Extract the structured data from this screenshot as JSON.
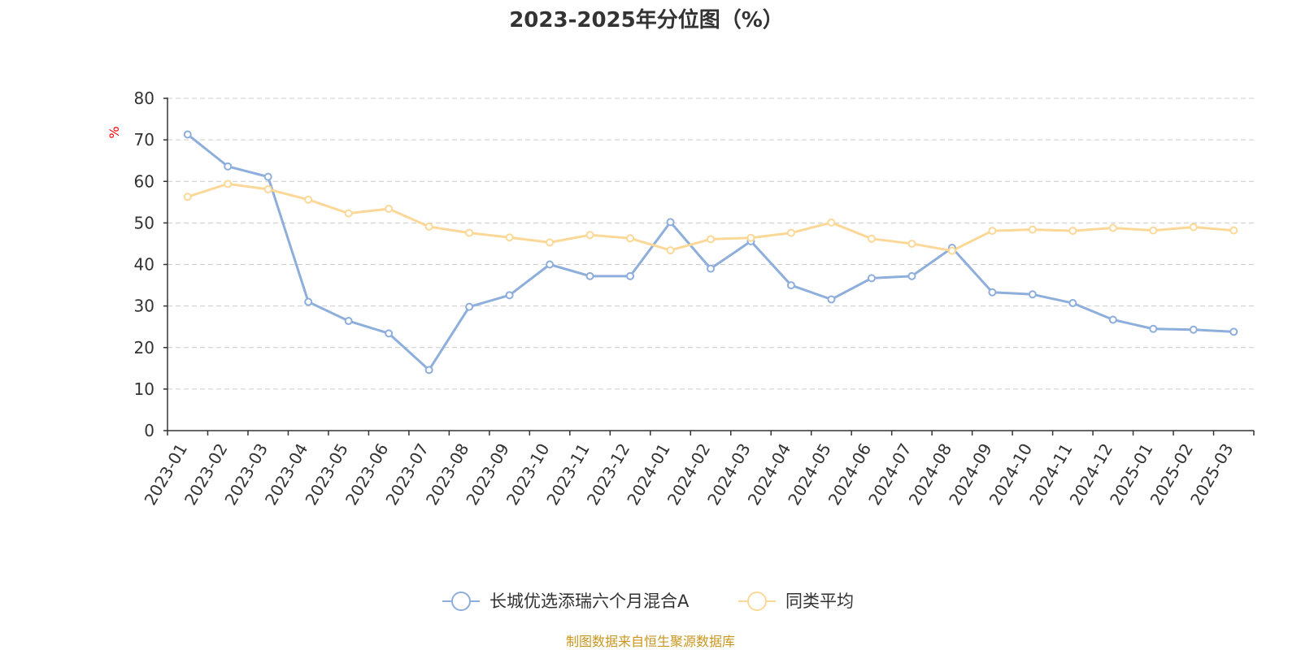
{
  "chart_data": {
    "type": "line",
    "title": "2023-2025年分位图（%）",
    "ylabel": "%",
    "ylim": [
      0,
      80
    ],
    "yticks": [
      0,
      10,
      20,
      30,
      40,
      50,
      60,
      70,
      80
    ],
    "grid": true,
    "legend_position": "bottom",
    "categories": [
      "2023-01",
      "2023-02",
      "2023-03",
      "2023-04",
      "2023-05",
      "2023-06",
      "2023-07",
      "2023-08",
      "2023-09",
      "2023-10",
      "2023-11",
      "2023-12",
      "2024-01",
      "2024-02",
      "2024-03",
      "2024-04",
      "2024-05",
      "2024-06",
      "2024-07",
      "2024-08",
      "2024-09",
      "2024-10",
      "2024-11",
      "2024-12",
      "2025-01",
      "2025-02",
      "2025-03"
    ],
    "series": [
      {
        "name": "长城优选添瑞六个月混合A",
        "color": "#8eaedb",
        "values": [
          71.3,
          63.6,
          61.1,
          31.0,
          26.4,
          23.4,
          14.6,
          29.8,
          32.6,
          40.0,
          37.2,
          37.2,
          50.2,
          39.0,
          45.6,
          35.0,
          31.6,
          36.7,
          37.2,
          44.0,
          33.3,
          32.8,
          30.7,
          26.7,
          24.5,
          24.3,
          23.8
        ]
      },
      {
        "name": "同类平均",
        "color": "#fcd898",
        "values": [
          56.3,
          59.4,
          58.1,
          55.6,
          52.3,
          53.4,
          49.1,
          47.6,
          46.5,
          45.3,
          47.1,
          46.3,
          43.4,
          46.1,
          46.4,
          47.6,
          50.1,
          46.2,
          45.0,
          43.3,
          48.1,
          48.4,
          48.1,
          48.8,
          48.2,
          49.0,
          48.2
        ]
      }
    ],
    "source_note": "制图数据来自恒生聚源数据库"
  }
}
